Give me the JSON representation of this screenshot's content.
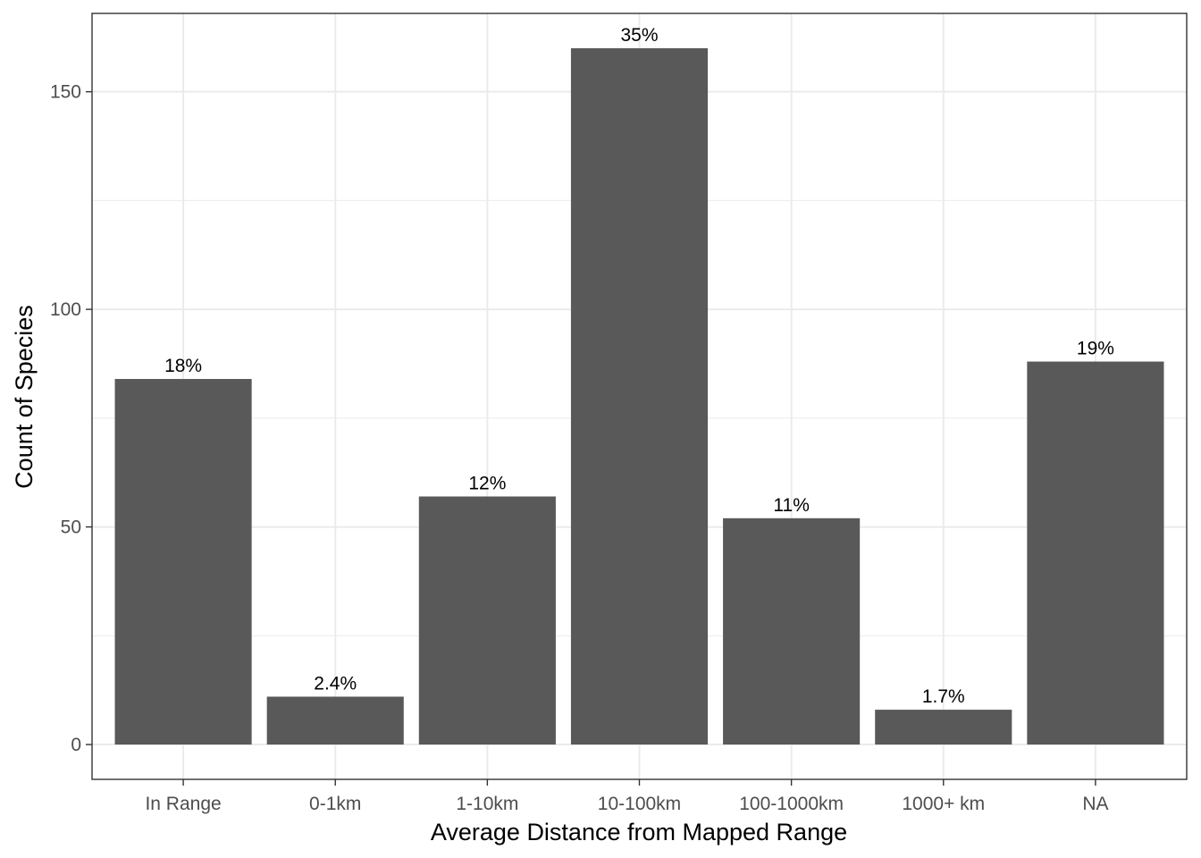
{
  "chart_data": {
    "type": "bar",
    "title": "",
    "xlabel": "Average Distance from Mapped Range",
    "ylabel": "Count of Species",
    "categories": [
      "In Range",
      "0-1km",
      "1-10km",
      "10-100km",
      "100-1000km",
      "1000+ km",
      "NA"
    ],
    "values": [
      84,
      11,
      57,
      160,
      52,
      8,
      88
    ],
    "data_labels": [
      "18%",
      "2.4%",
      "12%",
      "35%",
      "11%",
      "1.7%",
      "19%"
    ],
    "ylim": [
      -8,
      168
    ],
    "yticks": [
      0,
      50,
      100,
      150
    ],
    "ytick_labels": [
      "0",
      "50",
      "100",
      "150"
    ],
    "grid": true,
    "theme": "black-and-white",
    "colors": {
      "bar": "#595959",
      "grid": "#ebebeb",
      "border": "#333333",
      "tick_text": "#4d4d4d"
    }
  }
}
